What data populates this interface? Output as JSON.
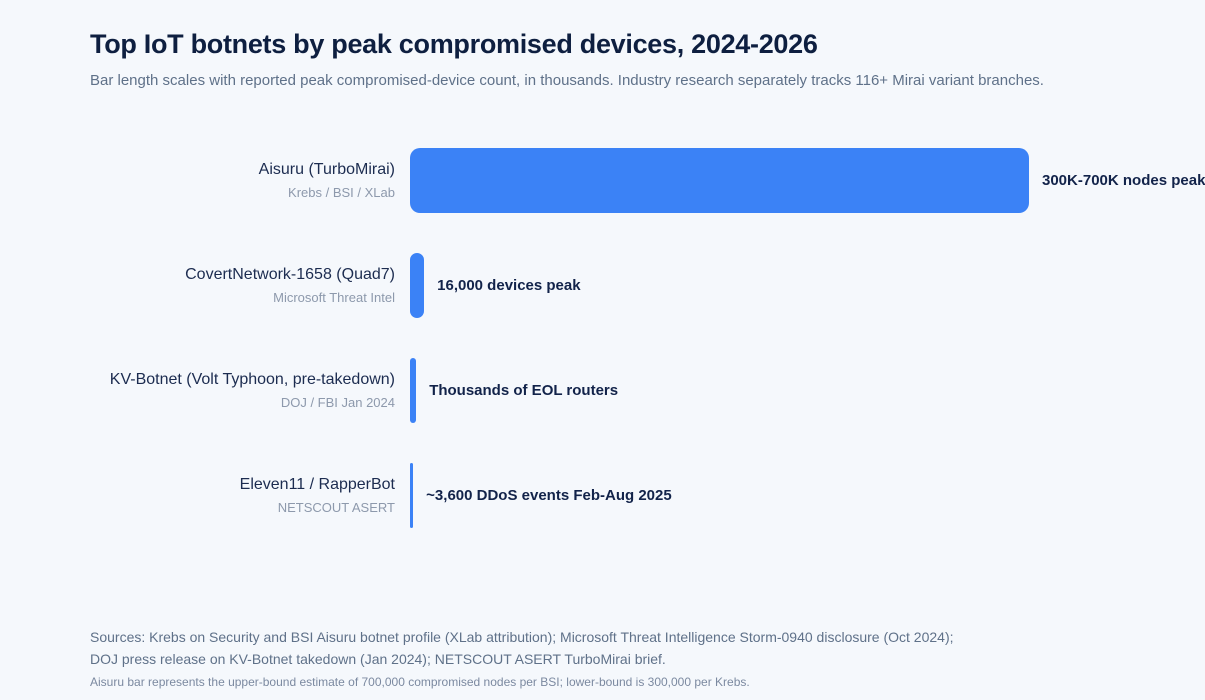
{
  "page": {
    "background_color": "#f5f8fc",
    "accent_color": "#3b82f6",
    "text_color": "#0e1f40"
  },
  "header": {
    "title": "Top IoT botnets by peak compromised devices, 2024-2026",
    "subtitle": "Bar length scales with reported peak compromised-device count, in thousands. Industry research separately tracks 116+ Mirai variant branches."
  },
  "chart_data": {
    "type": "bar",
    "orientation": "horizontal",
    "title": "Top IoT botnets by peak compromised devices, 2024-2026",
    "xlabel": "",
    "ylabel": "",
    "bar_color": "#3b82f6",
    "grid": false,
    "legend": false,
    "xlim_thousands": [
      0,
      700
    ],
    "categories": [
      "Aisuru (TurboMirai)",
      "CovertNetwork-1658 (Quad7)",
      "KV-Botnet (Volt Typhoon, pre-takedown)",
      "Eleven11 / RapperBot"
    ],
    "category_sources": [
      "Krebs / BSI / XLab",
      "Microsoft Threat Intel",
      "DOJ / FBI Jan 2024",
      "NETSCOUT ASERT"
    ],
    "values_thousands": [
      700,
      16,
      7,
      3.6
    ],
    "value_labels": [
      "300K-700K nodes peak",
      "16,000 devices peak",
      "Thousands of EOL routers",
      "~3,600 DDoS events Feb-Aug 2025"
    ]
  },
  "footer": {
    "sources_line1": "Sources: Krebs on Security and BSI Aisuru botnet profile (XLab attribution); Microsoft Threat Intelligence Storm-0940 disclosure (Oct 2024);",
    "sources_line2": "DOJ press release on KV-Botnet takedown (Jan 2024); NETSCOUT ASERT TurboMirai brief.",
    "note": "Aisuru bar represents the upper-bound estimate of 700,000 compromised nodes per BSI; lower-bound is 300,000 per Krebs."
  }
}
